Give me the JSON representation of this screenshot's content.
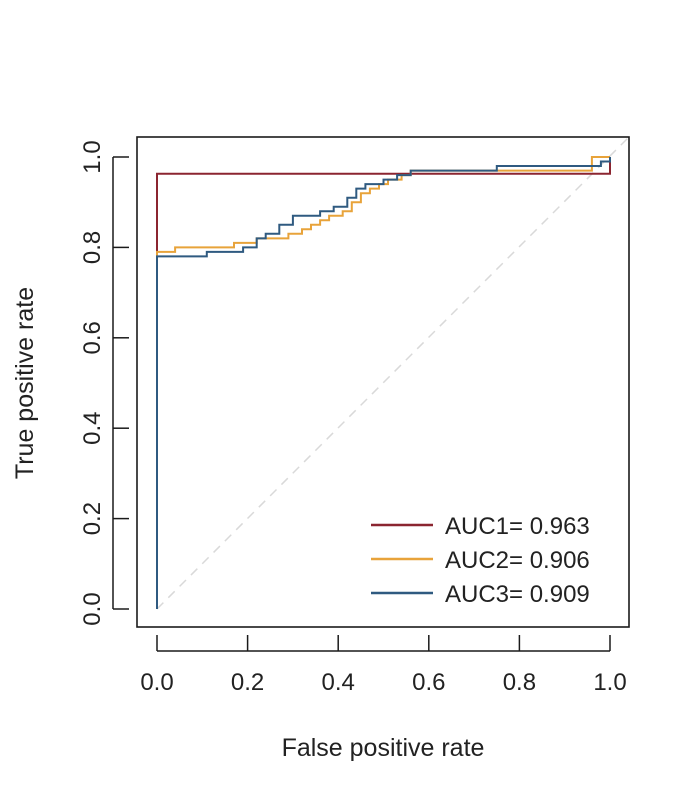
{
  "chart_data": {
    "type": "line",
    "title": "",
    "xlabel": "False positive rate",
    "ylabel": "True positive rate",
    "xlim": [
      0,
      1
    ],
    "ylim": [
      0,
      1
    ],
    "xticks": [
      "0.0",
      "0.2",
      "0.4",
      "0.6",
      "0.8",
      "1.0"
    ],
    "yticks": [
      "0.0",
      "0.2",
      "0.4",
      "0.6",
      "0.8",
      "1.0"
    ],
    "grid": false,
    "legend_position": "bottom-right",
    "diagonal_reference": {
      "style": "dashed",
      "color": "#d9d9d9"
    },
    "series": [
      {
        "name": "AUC1= 0.963",
        "color": "#8b2530",
        "x": [
          0,
          0,
          0,
          1,
          1
        ],
        "y": [
          0,
          0.79,
          0.963,
          0.963,
          1
        ]
      },
      {
        "name": "AUC2= 0.906",
        "color": "#e8a33a",
        "x": [
          0,
          0,
          0.04,
          0.04,
          0.17,
          0.17,
          0.22,
          0.22,
          0.29,
          0.29,
          0.32,
          0.32,
          0.34,
          0.34,
          0.36,
          0.36,
          0.38,
          0.38,
          0.41,
          0.41,
          0.43,
          0.43,
          0.45,
          0.45,
          0.47,
          0.47,
          0.49,
          0.49,
          0.51,
          0.51,
          0.54,
          0.54,
          0.56,
          0.56,
          0.96,
          0.96,
          1
        ],
        "y": [
          0,
          0.79,
          0.79,
          0.8,
          0.8,
          0.81,
          0.81,
          0.82,
          0.82,
          0.83,
          0.83,
          0.84,
          0.84,
          0.85,
          0.85,
          0.86,
          0.86,
          0.87,
          0.87,
          0.88,
          0.88,
          0.9,
          0.9,
          0.92,
          0.92,
          0.93,
          0.93,
          0.94,
          0.94,
          0.95,
          0.95,
          0.96,
          0.96,
          0.97,
          0.97,
          1.0,
          1.0
        ]
      },
      {
        "name": "AUC3= 0.909",
        "color": "#2f5a80",
        "x": [
          0,
          0,
          0.11,
          0.11,
          0.19,
          0.19,
          0.22,
          0.22,
          0.24,
          0.24,
          0.27,
          0.27,
          0.3,
          0.3,
          0.36,
          0.36,
          0.39,
          0.39,
          0.42,
          0.42,
          0.44,
          0.44,
          0.46,
          0.46,
          0.5,
          0.5,
          0.53,
          0.53,
          0.56,
          0.56,
          0.75,
          0.75,
          0.98,
          0.98,
          1.0,
          1.0
        ],
        "y": [
          0,
          0.78,
          0.78,
          0.79,
          0.79,
          0.8,
          0.8,
          0.82,
          0.82,
          0.83,
          0.83,
          0.85,
          0.85,
          0.87,
          0.87,
          0.88,
          0.88,
          0.89,
          0.89,
          0.91,
          0.91,
          0.93,
          0.93,
          0.94,
          0.94,
          0.95,
          0.95,
          0.96,
          0.96,
          0.97,
          0.97,
          0.98,
          0.98,
          0.99,
          0.99,
          1.0
        ]
      }
    ]
  }
}
